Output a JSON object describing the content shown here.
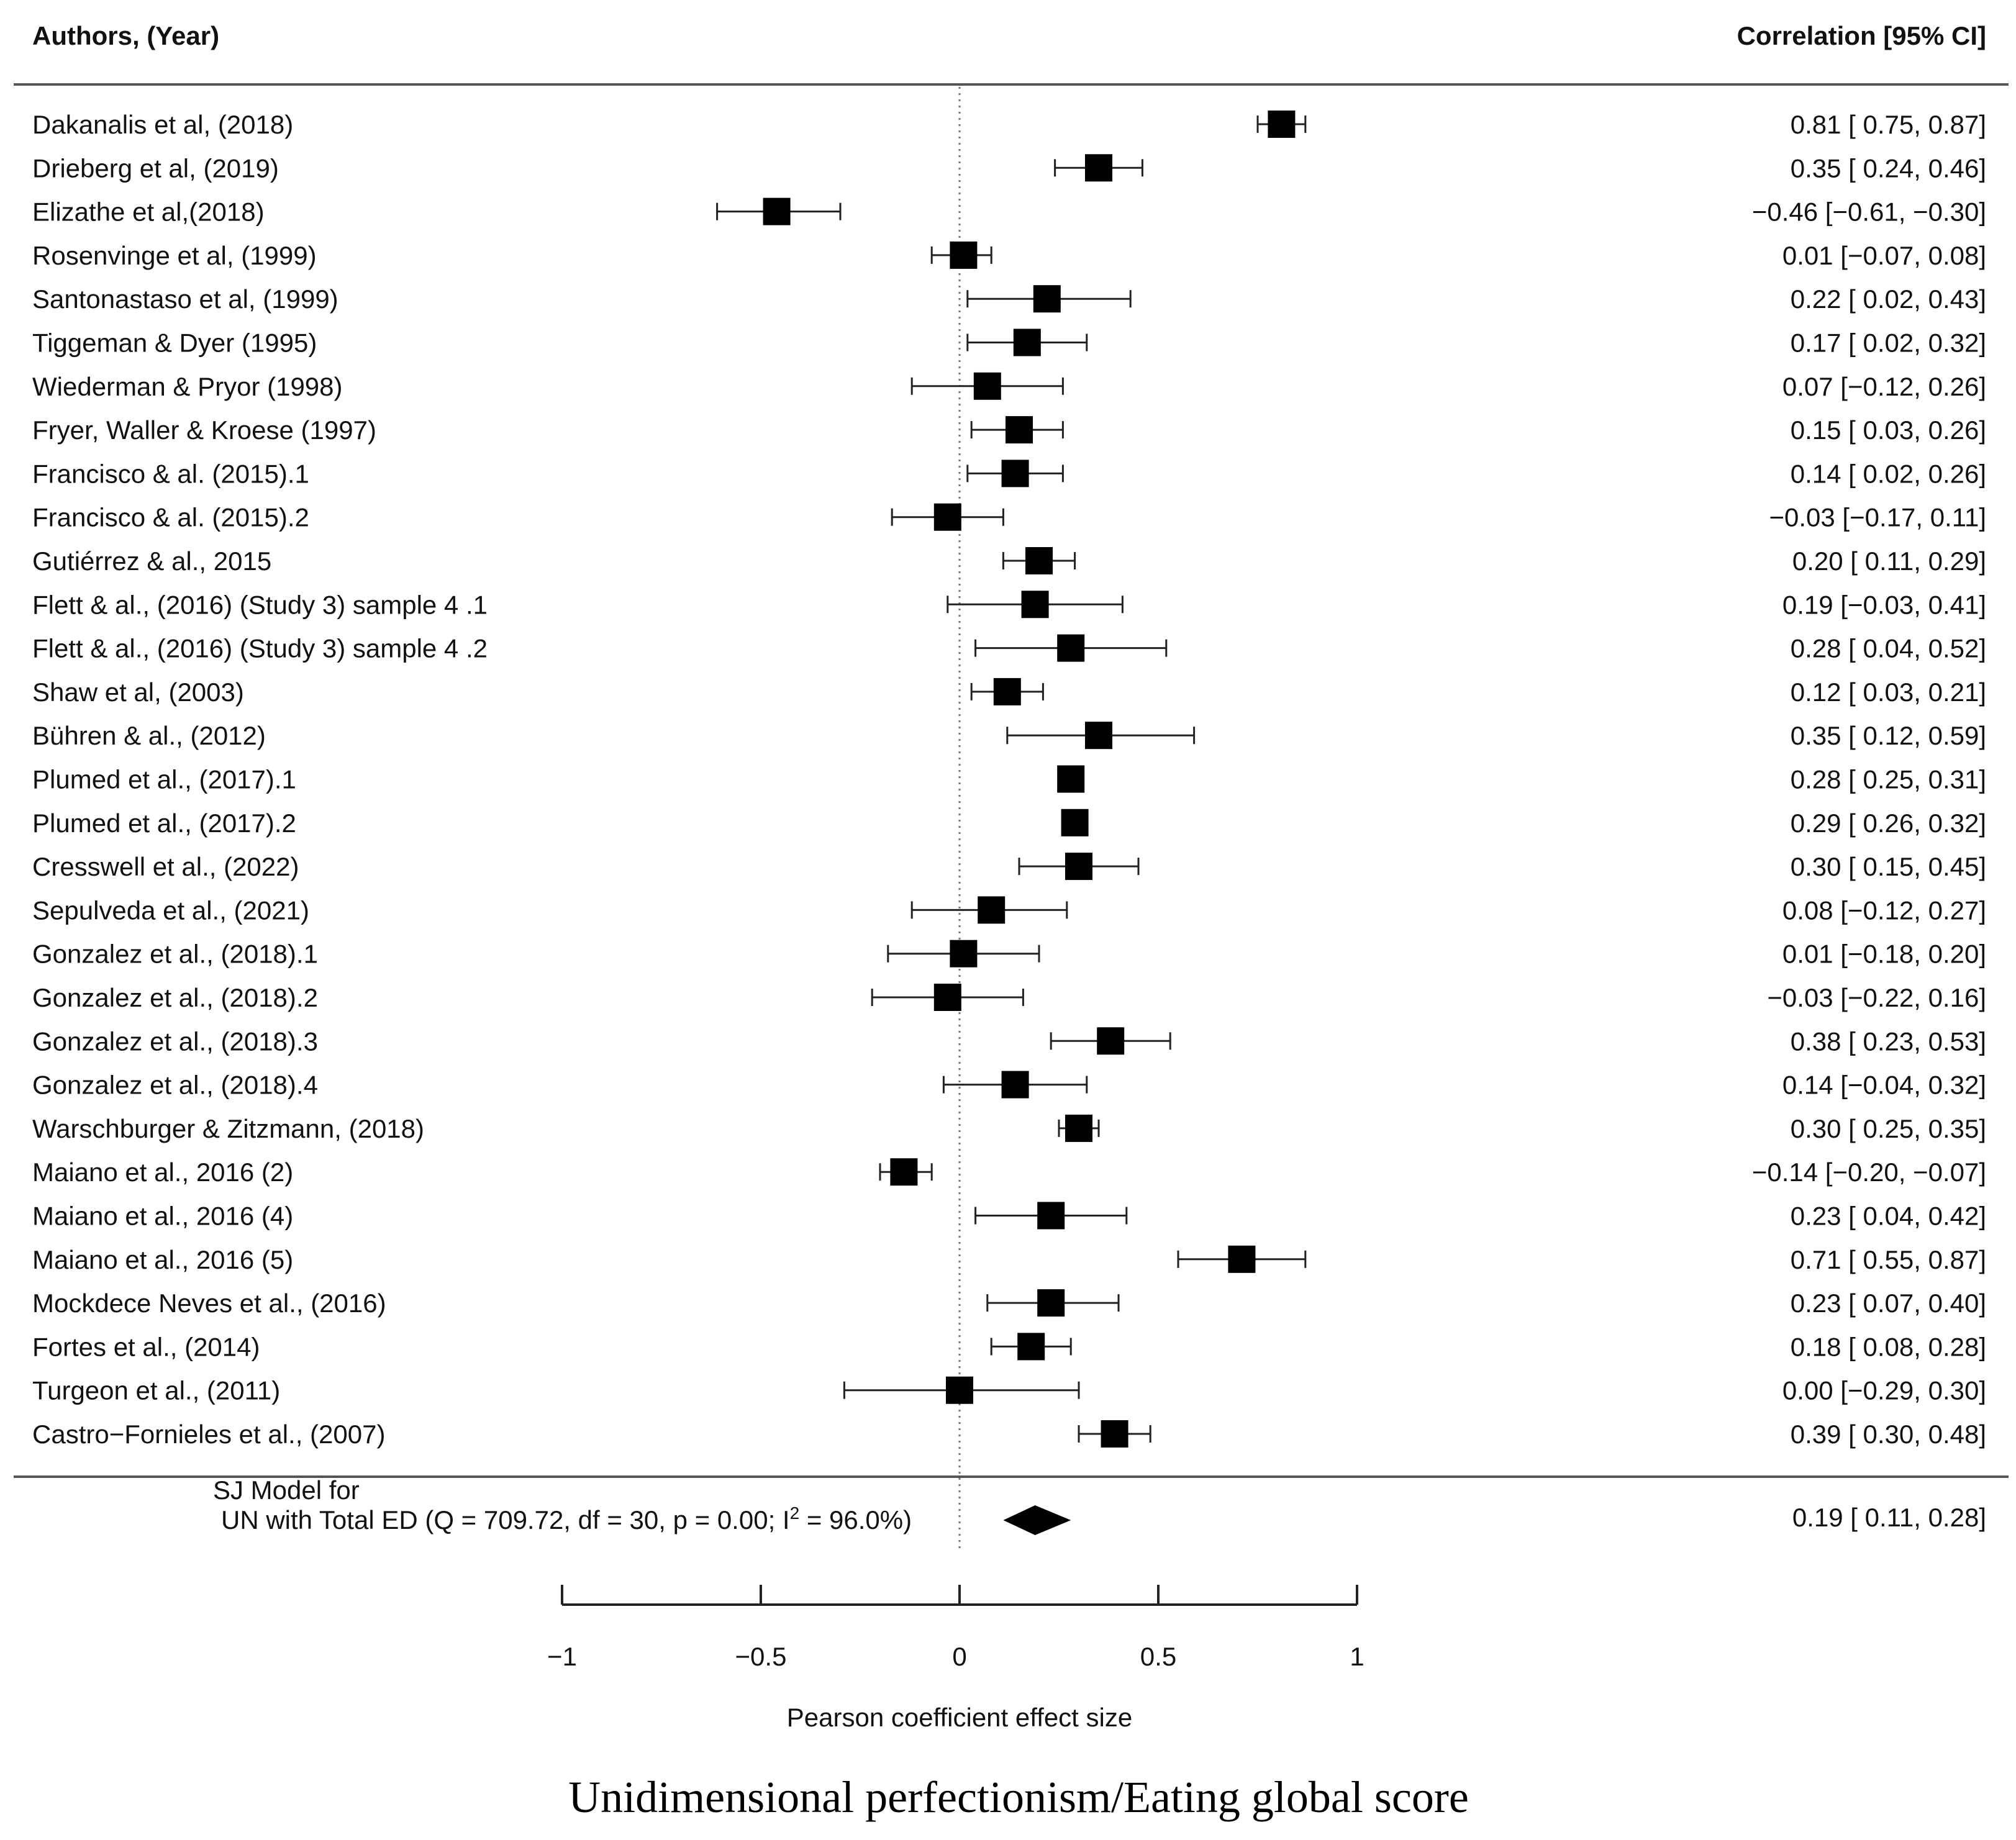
{
  "chart_data": {
    "type": "forest",
    "header_left": "Authors, (Year)",
    "header_right": "Correlation [95% CI]",
    "studies": [
      {
        "label": "Dakanalis et al, (2018)",
        "est": 0.81,
        "lo": 0.75,
        "hi": 0.87,
        "ci_text": "0.81 [ 0.75,  0.87]"
      },
      {
        "label": "Drieberg et al, (2019)",
        "est": 0.35,
        "lo": 0.24,
        "hi": 0.46,
        "ci_text": "0.35 [ 0.24,  0.46]"
      },
      {
        "label": "Elizathe et al,(2018)",
        "est": -0.46,
        "lo": -0.61,
        "hi": -0.3,
        "ci_text": "−0.46 [−0.61, −0.30]"
      },
      {
        "label": "Rosenvinge et al, (1999)",
        "est": 0.01,
        "lo": -0.07,
        "hi": 0.08,
        "ci_text": "0.01 [−0.07,  0.08]"
      },
      {
        "label": "Santonastaso et al, (1999)",
        "est": 0.22,
        "lo": 0.02,
        "hi": 0.43,
        "ci_text": "0.22 [ 0.02,  0.43]"
      },
      {
        "label": "Tiggeman & Dyer (1995)",
        "est": 0.17,
        "lo": 0.02,
        "hi": 0.32,
        "ci_text": "0.17 [ 0.02,  0.32]"
      },
      {
        "label": "Wiederman & Pryor (1998)",
        "est": 0.07,
        "lo": -0.12,
        "hi": 0.26,
        "ci_text": "0.07 [−0.12,  0.26]"
      },
      {
        "label": "Fryer, Waller & Kroese (1997)",
        "est": 0.15,
        "lo": 0.03,
        "hi": 0.26,
        "ci_text": "0.15 [ 0.03,  0.26]"
      },
      {
        "label": "Francisco & al. (2015).1",
        "est": 0.14,
        "lo": 0.02,
        "hi": 0.26,
        "ci_text": "0.14 [ 0.02,  0.26]"
      },
      {
        "label": "Francisco & al. (2015).2",
        "est": -0.03,
        "lo": -0.17,
        "hi": 0.11,
        "ci_text": "−0.03 [−0.17,  0.11]"
      },
      {
        "label": "Gutiérrez & al., 2015",
        "est": 0.2,
        "lo": 0.11,
        "hi": 0.29,
        "ci_text": "0.20 [ 0.11,  0.29]"
      },
      {
        "label": "Flett & al., (2016) (Study 3) sample 4 .1",
        "est": 0.19,
        "lo": -0.03,
        "hi": 0.41,
        "ci_text": "0.19 [−0.03,  0.41]"
      },
      {
        "label": "Flett & al., (2016) (Study 3) sample 4 .2",
        "est": 0.28,
        "lo": 0.04,
        "hi": 0.52,
        "ci_text": "0.28 [ 0.04,  0.52]"
      },
      {
        "label": "Shaw et al, (2003)",
        "est": 0.12,
        "lo": 0.03,
        "hi": 0.21,
        "ci_text": "0.12 [ 0.03,  0.21]"
      },
      {
        "label": "Bühren & al., (2012)",
        "est": 0.35,
        "lo": 0.12,
        "hi": 0.59,
        "ci_text": "0.35 [ 0.12,  0.59]"
      },
      {
        "label": "Plumed et al., (2017).1",
        "est": 0.28,
        "lo": 0.25,
        "hi": 0.31,
        "ci_text": "0.28 [ 0.25,  0.31]"
      },
      {
        "label": "Plumed et al., (2017).2",
        "est": 0.29,
        "lo": 0.26,
        "hi": 0.32,
        "ci_text": "0.29 [ 0.26,  0.32]"
      },
      {
        "label": "Cresswell et al., (2022)",
        "est": 0.3,
        "lo": 0.15,
        "hi": 0.45,
        "ci_text": "0.30 [ 0.15,  0.45]"
      },
      {
        "label": "Sepulveda et al., (2021)",
        "est": 0.08,
        "lo": -0.12,
        "hi": 0.27,
        "ci_text": "0.08 [−0.12,  0.27]"
      },
      {
        "label": "Gonzalez et al., (2018).1",
        "est": 0.01,
        "lo": -0.18,
        "hi": 0.2,
        "ci_text": "0.01 [−0.18,  0.20]"
      },
      {
        "label": "Gonzalez et al., (2018).2",
        "est": -0.03,
        "lo": -0.22,
        "hi": 0.16,
        "ci_text": "−0.03 [−0.22,  0.16]"
      },
      {
        "label": "Gonzalez et al., (2018).3",
        "est": 0.38,
        "lo": 0.23,
        "hi": 0.53,
        "ci_text": "0.38 [ 0.23,  0.53]"
      },
      {
        "label": "Gonzalez et al., (2018).4",
        "est": 0.14,
        "lo": -0.04,
        "hi": 0.32,
        "ci_text": "0.14 [−0.04,  0.32]"
      },
      {
        "label": "Warschburger & Zitzmann, (2018)",
        "est": 0.3,
        "lo": 0.25,
        "hi": 0.35,
        "ci_text": "0.30 [ 0.25,  0.35]"
      },
      {
        "label": "Maiano et al., 2016 (2)",
        "est": -0.14,
        "lo": -0.2,
        "hi": -0.07,
        "ci_text": "−0.14 [−0.20, −0.07]"
      },
      {
        "label": "Maiano et al., 2016 (4)",
        "est": 0.23,
        "lo": 0.04,
        "hi": 0.42,
        "ci_text": "0.23 [ 0.04,  0.42]"
      },
      {
        "label": "Maiano et al., 2016 (5)",
        "est": 0.71,
        "lo": 0.55,
        "hi": 0.87,
        "ci_text": "0.71 [ 0.55,  0.87]"
      },
      {
        "label": "Mockdece Neves et al., (2016)",
        "est": 0.23,
        "lo": 0.07,
        "hi": 0.4,
        "ci_text": "0.23 [ 0.07,  0.40]"
      },
      {
        "label": "Fortes et al., (2014)",
        "est": 0.18,
        "lo": 0.08,
        "hi": 0.28,
        "ci_text": "0.18 [ 0.08,  0.28]"
      },
      {
        "label": "Turgeon et al., (2011)",
        "est": 0.0,
        "lo": -0.29,
        "hi": 0.3,
        "ci_text": "0.00 [−0.29,  0.30]"
      },
      {
        "label": "Castro−Fornieles et al., (2007)",
        "est": 0.39,
        "lo": 0.3,
        "hi": 0.48,
        "ci_text": "0.39 [ 0.30,  0.48]"
      }
    ],
    "summary": {
      "label_line1": "SJ Model for",
      "label_line2_pre": "UN with Total ED (Q = 709.72, df = 30, p = 0.00; I",
      "label_sup": "2",
      "label_line2_post": " = 96.0%)",
      "est": 0.19,
      "lo": 0.11,
      "hi": 0.28,
      "ci_text": "0.19 [ 0.11,  0.28]"
    },
    "x_axis": {
      "range": [
        -1,
        1
      ],
      "ticks": [
        -1,
        -0.5,
        0,
        0.5,
        1
      ],
      "tick_labels": [
        "−1",
        "−0.5",
        "0",
        "0.5",
        "1"
      ],
      "label": "Pearson coefficient effect size",
      "reference_line": 0
    }
  },
  "caption": "Unidimensional perfectionism/Eating global score"
}
